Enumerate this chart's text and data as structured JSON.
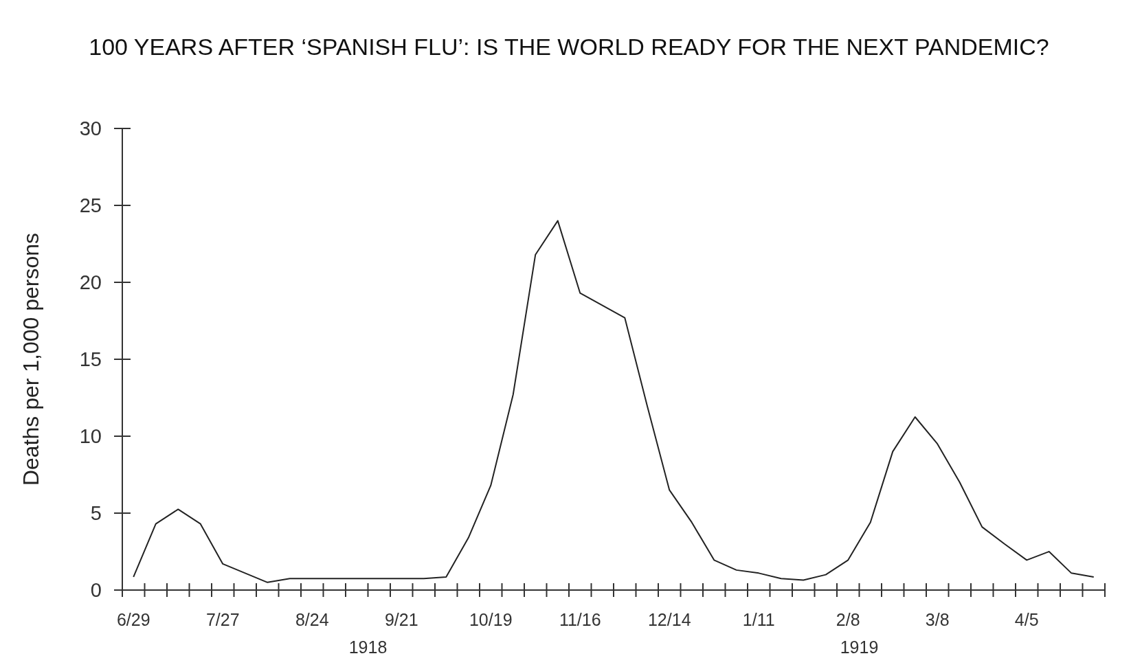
{
  "chart_data": {
    "type": "line",
    "title": "100 YEARS AFTER ‘SPANISH FLU’: IS THE WORLD READY FOR THE NEXT PANDEMIC?",
    "ylabel": "Deaths per 1,000 persons",
    "categories": [
      "6/29",
      null,
      null,
      null,
      "7/27",
      null,
      null,
      null,
      "8/24",
      null,
      null,
      null,
      "9/21",
      null,
      null,
      null,
      "10/19",
      null,
      null,
      null,
      "11/16",
      null,
      null,
      null,
      "12/14",
      null,
      null,
      null,
      "1/11",
      null,
      null,
      null,
      "2/8",
      null,
      null,
      null,
      "3/8",
      null,
      null,
      null,
      "4/5",
      null,
      null,
      null
    ],
    "series": [
      {
        "color": "#222222",
        "values": [
          0.85,
          4.3,
          5.25,
          4.3,
          1.7,
          1.1,
          0.5,
          0.75,
          0.75,
          0.75,
          0.75,
          0.75,
          0.75,
          0.75,
          0.85,
          3.4,
          6.8,
          12.7,
          21.8,
          24.0,
          19.3,
          18.5,
          17.7,
          12.0,
          6.5,
          4.4,
          1.95,
          1.3,
          1.1,
          0.75,
          0.65,
          1.0,
          1.95,
          4.4,
          9.0,
          11.25,
          9.5,
          7.0,
          4.1,
          3.0,
          1.95,
          2.5,
          1.1,
          0.85
        ]
      }
    ],
    "ylim": [
      0,
      30
    ],
    "yticks": [
      0,
      5,
      10,
      15,
      20,
      25,
      30
    ],
    "grid": false,
    "marker": "none",
    "line_style": "solid",
    "annotations": [
      "1918",
      "1919"
    ]
  }
}
